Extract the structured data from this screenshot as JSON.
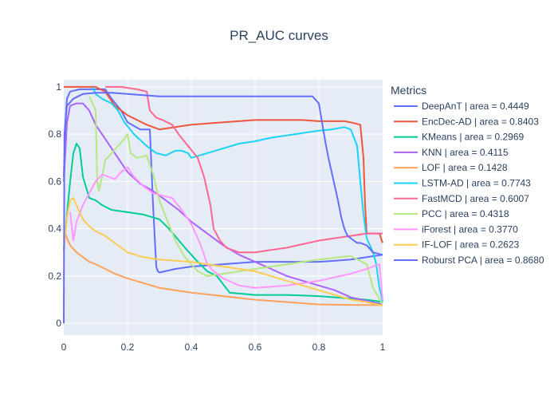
{
  "chart_data": {
    "type": "line",
    "title": "PR_AUC curves",
    "xlabel": "",
    "ylabel": "",
    "xlim": [
      0,
      1
    ],
    "ylim": [
      -0.05,
      1.03
    ],
    "x_ticks": [
      "0",
      "0.2",
      "0.4",
      "0.6",
      "0.8",
      "1"
    ],
    "y_ticks": [
      "0",
      "0.2",
      "0.4",
      "0.6",
      "0.8",
      "1"
    ],
    "grid": true,
    "legend": {
      "title": "Metrics",
      "position": "right"
    },
    "series": [
      {
        "name": "DeepAnT | area = 0.4449",
        "color": "#636efa",
        "points": [
          [
            0,
            0.62
          ],
          [
            0.005,
            0.85
          ],
          [
            0.01,
            0.95
          ],
          [
            0.02,
            0.98
          ],
          [
            0.05,
            0.99
          ],
          [
            0.1,
            0.99
          ],
          [
            0.13,
            0.99
          ],
          [
            0.15,
            0.95
          ],
          [
            0.18,
            0.9
          ],
          [
            0.2,
            0.85
          ],
          [
            0.24,
            0.82
          ],
          [
            0.27,
            0.82
          ],
          [
            0.28,
            0.5
          ],
          [
            0.29,
            0.24
          ],
          [
            0.295,
            0.22
          ],
          [
            0.3,
            0.215
          ],
          [
            0.35,
            0.23
          ],
          [
            0.4,
            0.24
          ],
          [
            0.5,
            0.25
          ],
          [
            0.6,
            0.26
          ],
          [
            0.7,
            0.26
          ],
          [
            0.8,
            0.26
          ],
          [
            0.85,
            0.265
          ],
          [
            0.9,
            0.27
          ],
          [
            0.95,
            0.28
          ],
          [
            1,
            0.29
          ]
        ]
      },
      {
        "name": "EncDec-AD | area = 0.8403",
        "color": "#ef553b",
        "points": [
          [
            0,
            1.0
          ],
          [
            0.05,
            1.0
          ],
          [
            0.1,
            1.0
          ],
          [
            0.13,
            0.98
          ],
          [
            0.16,
            0.92
          ],
          [
            0.2,
            0.88
          ],
          [
            0.23,
            0.86
          ],
          [
            0.26,
            0.84
          ],
          [
            0.3,
            0.82
          ],
          [
            0.35,
            0.83
          ],
          [
            0.4,
            0.84
          ],
          [
            0.45,
            0.845
          ],
          [
            0.5,
            0.85
          ],
          [
            0.6,
            0.86
          ],
          [
            0.7,
            0.86
          ],
          [
            0.75,
            0.86
          ],
          [
            0.8,
            0.855
          ],
          [
            0.85,
            0.855
          ],
          [
            0.88,
            0.855
          ],
          [
            0.9,
            0.85
          ],
          [
            0.93,
            0.84
          ],
          [
            0.94,
            0.7
          ],
          [
            0.945,
            0.5
          ],
          [
            0.95,
            0.38
          ],
          [
            0.97,
            0.38
          ],
          [
            0.99,
            0.38
          ],
          [
            1,
            0.34
          ]
        ]
      },
      {
        "name": "KMeans | area = 0.2969",
        "color": "#00cc96",
        "points": [
          [
            0,
            0.31
          ],
          [
            0.01,
            0.46
          ],
          [
            0.02,
            0.6
          ],
          [
            0.03,
            0.72
          ],
          [
            0.04,
            0.76
          ],
          [
            0.05,
            0.74
          ],
          [
            0.06,
            0.62
          ],
          [
            0.08,
            0.53
          ],
          [
            0.1,
            0.52
          ],
          [
            0.12,
            0.5
          ],
          [
            0.15,
            0.48
          ],
          [
            0.2,
            0.47
          ],
          [
            0.25,
            0.46
          ],
          [
            0.3,
            0.44
          ],
          [
            0.33,
            0.4
          ],
          [
            0.38,
            0.32
          ],
          [
            0.42,
            0.26
          ],
          [
            0.45,
            0.22
          ],
          [
            0.48,
            0.2
          ],
          [
            0.52,
            0.13
          ],
          [
            0.6,
            0.12
          ],
          [
            0.7,
            0.12
          ],
          [
            0.8,
            0.115
          ],
          [
            0.9,
            0.105
          ],
          [
            0.95,
            0.1
          ],
          [
            1,
            0.09
          ]
        ]
      },
      {
        "name": "KNN | area = 0.4115",
        "color": "#ab63fa",
        "points": [
          [
            0,
            0.6
          ],
          [
            0.01,
            0.85
          ],
          [
            0.02,
            0.92
          ],
          [
            0.04,
            0.93
          ],
          [
            0.06,
            0.93
          ],
          [
            0.08,
            0.9
          ],
          [
            0.1,
            0.84
          ],
          [
            0.13,
            0.78
          ],
          [
            0.16,
            0.72
          ],
          [
            0.2,
            0.64
          ],
          [
            0.24,
            0.59
          ],
          [
            0.28,
            0.56
          ],
          [
            0.32,
            0.52
          ],
          [
            0.36,
            0.48
          ],
          [
            0.4,
            0.43
          ],
          [
            0.45,
            0.38
          ],
          [
            0.5,
            0.33
          ],
          [
            0.55,
            0.29
          ],
          [
            0.6,
            0.26
          ],
          [
            0.65,
            0.23
          ],
          [
            0.7,
            0.2
          ],
          [
            0.75,
            0.18
          ],
          [
            0.8,
            0.16
          ],
          [
            0.85,
            0.14
          ],
          [
            0.9,
            0.11
          ],
          [
            0.95,
            0.095
          ],
          [
            1,
            0.08
          ]
        ]
      },
      {
        "name": "LOF | area = 0.1428",
        "color": "#ffa15a",
        "points": [
          [
            0,
            0.35
          ],
          [
            0.005,
            0.38
          ],
          [
            0.01,
            0.36
          ],
          [
            0.02,
            0.33
          ],
          [
            0.04,
            0.3
          ],
          [
            0.06,
            0.28
          ],
          [
            0.08,
            0.26
          ],
          [
            0.1,
            0.25
          ],
          [
            0.13,
            0.23
          ],
          [
            0.16,
            0.21
          ],
          [
            0.2,
            0.19
          ],
          [
            0.25,
            0.17
          ],
          [
            0.3,
            0.15
          ],
          [
            0.35,
            0.14
          ],
          [
            0.4,
            0.13
          ],
          [
            0.5,
            0.115
          ],
          [
            0.6,
            0.1
          ],
          [
            0.7,
            0.09
          ],
          [
            0.8,
            0.08
          ],
          [
            0.9,
            0.078
          ],
          [
            1,
            0.077
          ]
        ]
      },
      {
        "name": "LSTM-AD | area = 0.7743",
        "color": "#19d3f3",
        "points": [
          [
            0.09,
            1.0
          ],
          [
            0.1,
            0.97
          ],
          [
            0.12,
            0.95
          ],
          [
            0.15,
            0.93
          ],
          [
            0.17,
            0.9
          ],
          [
            0.19,
            0.85
          ],
          [
            0.22,
            0.8
          ],
          [
            0.26,
            0.75
          ],
          [
            0.29,
            0.72
          ],
          [
            0.32,
            0.71
          ],
          [
            0.35,
            0.73
          ],
          [
            0.37,
            0.73
          ],
          [
            0.39,
            0.72
          ],
          [
            0.4,
            0.7
          ],
          [
            0.45,
            0.72
          ],
          [
            0.5,
            0.74
          ],
          [
            0.55,
            0.76
          ],
          [
            0.6,
            0.77
          ],
          [
            0.65,
            0.785
          ],
          [
            0.7,
            0.795
          ],
          [
            0.75,
            0.805
          ],
          [
            0.8,
            0.815
          ],
          [
            0.84,
            0.82
          ],
          [
            0.88,
            0.83
          ],
          [
            0.9,
            0.82
          ],
          [
            0.92,
            0.75
          ],
          [
            0.93,
            0.6
          ],
          [
            0.94,
            0.46
          ],
          [
            0.95,
            0.36
          ],
          [
            0.97,
            0.3
          ],
          [
            0.98,
            0.25
          ],
          [
            0.99,
            0.15
          ],
          [
            1,
            0.09
          ]
        ]
      },
      {
        "name": "FastMCD | area = 0.6007",
        "color": "#ff6692",
        "points": [
          [
            0.13,
            1.0
          ],
          [
            0.18,
            1.0
          ],
          [
            0.23,
            0.99
          ],
          [
            0.26,
            0.98
          ],
          [
            0.27,
            0.9
          ],
          [
            0.29,
            0.87
          ],
          [
            0.31,
            0.86
          ],
          [
            0.34,
            0.84
          ],
          [
            0.36,
            0.8
          ],
          [
            0.39,
            0.75
          ],
          [
            0.42,
            0.7
          ],
          [
            0.44,
            0.62
          ],
          [
            0.46,
            0.5
          ],
          [
            0.47,
            0.4
          ],
          [
            0.49,
            0.35
          ],
          [
            0.51,
            0.32
          ],
          [
            0.55,
            0.3
          ],
          [
            0.6,
            0.3
          ],
          [
            0.65,
            0.31
          ],
          [
            0.7,
            0.32
          ],
          [
            0.75,
            0.335
          ],
          [
            0.8,
            0.35
          ],
          [
            0.85,
            0.36
          ],
          [
            0.9,
            0.37
          ],
          [
            0.95,
            0.38
          ],
          [
            1,
            0.38
          ]
        ]
      },
      {
        "name": "PCC | area = 0.4318",
        "color": "#b6e880",
        "points": [
          [
            0.08,
            0.96
          ],
          [
            0.09,
            0.93
          ],
          [
            0.1,
            0.9
          ],
          [
            0.105,
            0.6
          ],
          [
            0.11,
            0.56
          ],
          [
            0.12,
            0.62
          ],
          [
            0.13,
            0.69
          ],
          [
            0.15,
            0.72
          ],
          [
            0.17,
            0.75
          ],
          [
            0.19,
            0.78
          ],
          [
            0.2,
            0.8
          ],
          [
            0.21,
            0.72
          ],
          [
            0.23,
            0.7
          ],
          [
            0.26,
            0.71
          ],
          [
            0.28,
            0.63
          ],
          [
            0.3,
            0.52
          ],
          [
            0.32,
            0.45
          ],
          [
            0.35,
            0.35
          ],
          [
            0.38,
            0.28
          ],
          [
            0.42,
            0.22
          ],
          [
            0.45,
            0.2
          ],
          [
            0.5,
            0.21
          ],
          [
            0.6,
            0.23
          ],
          [
            0.7,
            0.25
          ],
          [
            0.8,
            0.27
          ],
          [
            0.9,
            0.285
          ],
          [
            0.95,
            0.25
          ],
          [
            0.97,
            0.15
          ],
          [
            1,
            0.08
          ]
        ]
      },
      {
        "name": "iForest | area = 0.3770",
        "color": "#ff97ff",
        "points": [
          [
            0.02,
            0.47
          ],
          [
            0.03,
            0.35
          ],
          [
            0.04,
            0.43
          ],
          [
            0.06,
            0.5
          ],
          [
            0.08,
            0.55
          ],
          [
            0.1,
            0.6
          ],
          [
            0.12,
            0.63
          ],
          [
            0.14,
            0.62
          ],
          [
            0.16,
            0.61
          ],
          [
            0.18,
            0.64
          ],
          [
            0.2,
            0.66
          ],
          [
            0.22,
            0.62
          ],
          [
            0.25,
            0.58
          ],
          [
            0.28,
            0.55
          ],
          [
            0.31,
            0.54
          ],
          [
            0.34,
            0.53
          ],
          [
            0.37,
            0.48
          ],
          [
            0.4,
            0.42
          ],
          [
            0.43,
            0.33
          ],
          [
            0.45,
            0.25
          ],
          [
            0.47,
            0.22
          ],
          [
            0.5,
            0.19
          ],
          [
            0.55,
            0.16
          ],
          [
            0.6,
            0.15
          ],
          [
            0.7,
            0.16
          ],
          [
            0.8,
            0.18
          ],
          [
            0.9,
            0.21
          ],
          [
            0.95,
            0.23
          ],
          [
            0.99,
            0.25
          ],
          [
            1,
            0.1
          ]
        ]
      },
      {
        "name": "IF-LOF | area = 0.2623",
        "color": "#fecb52",
        "points": [
          [
            0,
            0.3
          ],
          [
            0.01,
            0.45
          ],
          [
            0.02,
            0.52
          ],
          [
            0.03,
            0.53
          ],
          [
            0.04,
            0.5
          ],
          [
            0.06,
            0.44
          ],
          [
            0.08,
            0.41
          ],
          [
            0.1,
            0.39
          ],
          [
            0.13,
            0.37
          ],
          [
            0.16,
            0.34
          ],
          [
            0.2,
            0.3
          ],
          [
            0.25,
            0.28
          ],
          [
            0.3,
            0.27
          ],
          [
            0.35,
            0.265
          ],
          [
            0.4,
            0.26
          ],
          [
            0.45,
            0.25
          ],
          [
            0.5,
            0.24
          ],
          [
            0.55,
            0.23
          ],
          [
            0.6,
            0.22
          ],
          [
            0.65,
            0.2
          ],
          [
            0.7,
            0.18
          ],
          [
            0.75,
            0.16
          ],
          [
            0.8,
            0.14
          ],
          [
            0.85,
            0.12
          ],
          [
            0.9,
            0.1
          ],
          [
            0.95,
            0.09
          ],
          [
            1,
            0.075
          ]
        ]
      },
      {
        "name": "Roburst PCA | area = 0.8680",
        "color": "#636efa",
        "points": [
          [
            0,
            0.0
          ],
          [
            0.002,
            0.8
          ],
          [
            0.01,
            0.92
          ],
          [
            0.03,
            0.95
          ],
          [
            0.06,
            0.97
          ],
          [
            0.1,
            0.975
          ],
          [
            0.15,
            0.975
          ],
          [
            0.2,
            0.97
          ],
          [
            0.25,
            0.965
          ],
          [
            0.3,
            0.96
          ],
          [
            0.4,
            0.96
          ],
          [
            0.5,
            0.96
          ],
          [
            0.6,
            0.96
          ],
          [
            0.7,
            0.96
          ],
          [
            0.78,
            0.96
          ],
          [
            0.8,
            0.93
          ],
          [
            0.81,
            0.85
          ],
          [
            0.82,
            0.77
          ],
          [
            0.83,
            0.7
          ],
          [
            0.84,
            0.64
          ],
          [
            0.85,
            0.58
          ],
          [
            0.86,
            0.52
          ],
          [
            0.87,
            0.45
          ],
          [
            0.88,
            0.4
          ],
          [
            0.89,
            0.37
          ],
          [
            0.9,
            0.36
          ],
          [
            0.91,
            0.35
          ],
          [
            0.92,
            0.34
          ],
          [
            0.93,
            0.34
          ],
          [
            0.95,
            0.33
          ],
          [
            0.97,
            0.3
          ],
          [
            1,
            0.29
          ]
        ]
      }
    ]
  }
}
